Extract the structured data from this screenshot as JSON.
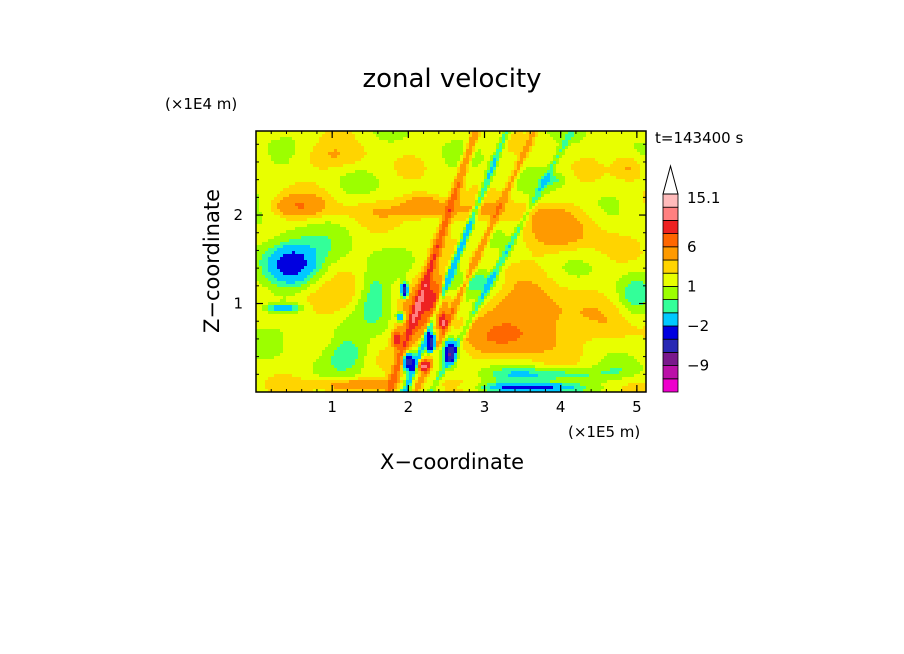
{
  "chart_data": {
    "type": "heatmap",
    "title": "zonal velocity",
    "xlabel": "X−coordinate",
    "ylabel": "Z−coordinate",
    "x_unit": "(×1E5 m)",
    "y_unit": "(×1E4 m)",
    "time_label": "t=143400 s",
    "xlim": [
      0,
      5.12
    ],
    "ylim": [
      0,
      2.95
    ],
    "x_ticks": [
      1,
      2,
      3,
      4,
      5
    ],
    "x_tick_labels": [
      "1",
      "2",
      "3",
      "4",
      "5"
    ],
    "y_ticks": [
      1,
      2
    ],
    "y_tick_labels": [
      "1",
      "2"
    ],
    "colorbar": {
      "levels": [
        -15,
        -12,
        -9,
        -6,
        -4,
        -2,
        -1,
        0,
        1,
        2,
        4,
        6,
        9,
        12,
        15.1
      ],
      "colors": [
        "#ee00cc",
        "#bb10a8",
        "#7a188c",
        "#2828b4",
        "#0000e0",
        "#00c8ff",
        "#33ff99",
        "#9cff00",
        "#e8ff00",
        "#ffd400",
        "#ff9a00",
        "#ff6600",
        "#ee2222",
        "#ff8080",
        "#ffbbbb"
      ],
      "tick_labels": [
        "15.1",
        "6",
        "1",
        "−2",
        "−9"
      ],
      "tick_values": [
        15.1,
        6,
        1,
        -2,
        -9
      ]
    },
    "field": {
      "background": 0.4,
      "features": [
        {
          "x": 2.5,
          "z": 2.05,
          "rx": 1.4,
          "rz": 0.12,
          "v": 1.6
        },
        {
          "x": 0.55,
          "z": 2.1,
          "rx": 0.35,
          "rz": 0.13,
          "v": 3.0
        },
        {
          "x": 2.2,
          "z": 2.12,
          "rx": 0.25,
          "rz": 0.12,
          "v": 3.2
        },
        {
          "x": 4.9,
          "z": 2.55,
          "rx": 0.2,
          "rz": 0.15,
          "v": 2.2
        },
        {
          "x": 4.0,
          "z": 1.8,
          "rx": 0.6,
          "rz": 0.25,
          "v": 2.0
        },
        {
          "x": 3.6,
          "z": 0.85,
          "rx": 0.6,
          "rz": 0.35,
          "v": 3.0
        },
        {
          "x": 3.2,
          "z": 0.6,
          "rx": 0.55,
          "rz": 0.2,
          "v": 2.2
        },
        {
          "x": 4.7,
          "z": 0.7,
          "rx": 0.35,
          "rz": 0.25,
          "v": 1.4
        },
        {
          "x": 0.9,
          "z": 1.05,
          "rx": 0.45,
          "rz": 0.2,
          "v": 1.6
        },
        {
          "x": 1.0,
          "z": 2.65,
          "rx": 0.5,
          "rz": 0.15,
          "v": 1.3
        },
        {
          "x": 0.45,
          "z": 1.45,
          "rx": 0.3,
          "rz": 0.2,
          "v": -5.0
        },
        {
          "x": 0.5,
          "z": 1.55,
          "rx": 0.6,
          "rz": 0.25,
          "v": -1.6
        },
        {
          "x": 0.35,
          "z": 0.95,
          "rx": 0.25,
          "rz": 0.05,
          "v": -3.5
        },
        {
          "x": 0.75,
          "z": 0.75,
          "rx": 0.35,
          "rz": 0.15,
          "v": -1.2
        },
        {
          "x": 1.2,
          "z": 0.45,
          "rx": 0.25,
          "rz": 0.2,
          "v": -2.0
        },
        {
          "x": 1.55,
          "z": 1.1,
          "rx": 0.2,
          "rz": 0.3,
          "v": -2.0
        },
        {
          "x": 2.9,
          "z": 1.25,
          "rx": 0.3,
          "rz": 0.12,
          "v": -1.8
        },
        {
          "x": 3.8,
          "z": 0.2,
          "rx": 0.75,
          "rz": 0.08,
          "v": -2.5
        },
        {
          "x": 3.6,
          "z": 0.05,
          "rx": 0.55,
          "rz": 0.05,
          "v": -6.0
        },
        {
          "x": 3.9,
          "z": 2.4,
          "rx": 0.18,
          "rz": 0.07,
          "v": -1.5
        },
        {
          "x": 4.8,
          "z": 0.25,
          "rx": 0.3,
          "rz": 0.12,
          "v": -1.2
        },
        {
          "x": 1.3,
          "z": 0.08,
          "rx": 0.6,
          "rz": 0.07,
          "v": 3.0
        },
        {
          "x": 4.95,
          "z": 1.1,
          "rx": 0.2,
          "rz": 0.25,
          "v": -1.5
        },
        {
          "x": 2.15,
          "z": 0.85,
          "rx": 0.22,
          "rz": 0.35,
          "v": 4.0
        },
        {
          "x": 2.35,
          "z": 1.1,
          "rx": 0.15,
          "rz": 0.25,
          "v": 4.5
        },
        {
          "x": 1.95,
          "z": 1.15,
          "rx": 0.05,
          "rz": 0.08,
          "v": -9.0
        },
        {
          "x": 2.3,
          "z": 0.55,
          "rx": 0.06,
          "rz": 0.12,
          "v": -9.0
        },
        {
          "x": 2.55,
          "z": 0.45,
          "rx": 0.07,
          "rz": 0.13,
          "v": -8.0
        },
        {
          "x": 2.0,
          "z": 0.35,
          "rx": 0.08,
          "rz": 0.1,
          "v": -8.0
        },
        {
          "x": 1.85,
          "z": 0.6,
          "rx": 0.06,
          "rz": 0.1,
          "v": 7.0
        },
        {
          "x": 2.2,
          "z": 0.3,
          "rx": 0.07,
          "rz": 0.06,
          "v": 9.0
        },
        {
          "x": 2.45,
          "z": 0.8,
          "rx": 0.05,
          "rz": 0.08,
          "v": 8.0
        },
        {
          "x": 1.9,
          "z": 0.85,
          "rx": 0.05,
          "rz": 0.05,
          "v": -6.0
        }
      ],
      "streaks": [
        {
          "x0": 1.75,
          "z0": 0.0,
          "slope": 2.6,
          "amp": 5.5,
          "width": 0.06
        },
        {
          "x0": 1.95,
          "z0": 0.0,
          "slope": 2.2,
          "amp": -4.5,
          "width": 0.05
        },
        {
          "x0": 2.1,
          "z0": 0.0,
          "slope": 1.9,
          "amp": 3.5,
          "width": 0.05
        },
        {
          "x0": 2.3,
          "z0": 0.0,
          "slope": 1.6,
          "amp": -2.5,
          "width": 0.05
        }
      ]
    }
  }
}
